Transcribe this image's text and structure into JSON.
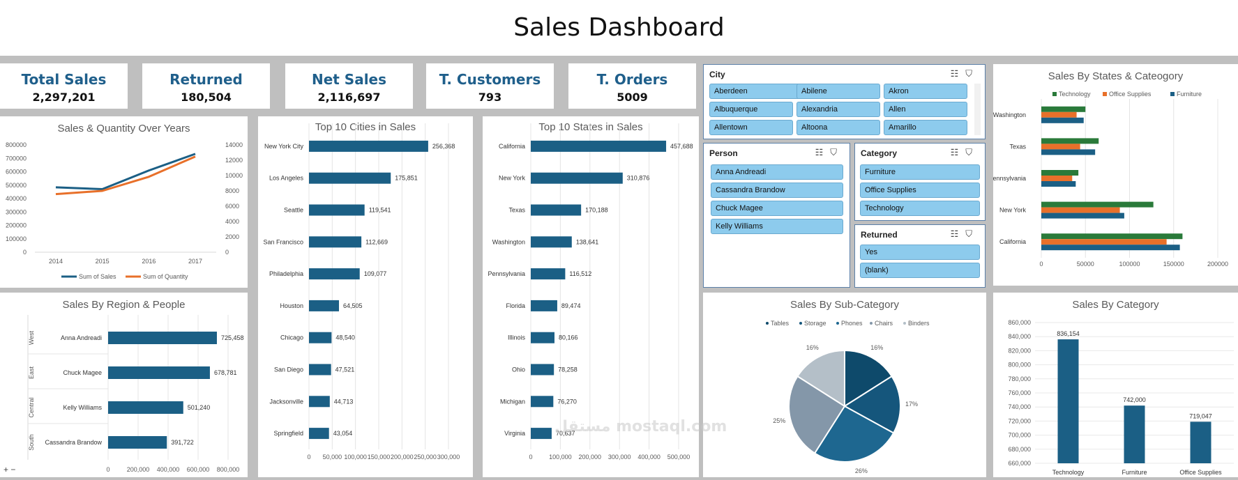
{
  "title": "Sales Dashboard",
  "kpis": [
    {
      "label": "Total Sales",
      "value": "2,297,201"
    },
    {
      "label": "Returned",
      "value": "180,504"
    },
    {
      "label": "Net Sales",
      "value": "2,116,697"
    },
    {
      "label": "T. Customers",
      "value": "793"
    },
    {
      "label": "T. Orders",
      "value": "5009"
    }
  ],
  "slicers": {
    "city": {
      "title": "City",
      "items": [
        "Aberdeen",
        "Abilene",
        "Akron",
        "Albuquerque",
        "Alexandria",
        "Allen",
        "Allentown",
        "Altoona",
        "Amarillo"
      ]
    },
    "person": {
      "title": "Person",
      "items": [
        "Anna Andreadi",
        "Cassandra Brandow",
        "Chuck Magee",
        "Kelly Williams"
      ]
    },
    "category": {
      "title": "Category",
      "items": [
        "Furniture",
        "Office Supplies",
        "Technology"
      ]
    },
    "returned": {
      "title": "Returned",
      "items": [
        "Yes",
        "(blank)"
      ]
    }
  },
  "icons": {
    "multi_select": "multi-select-icon",
    "clear_filter": "clear-filter-icon"
  },
  "colors": {
    "dark_blue": "#1b5f85",
    "navy": "#0e4a6b",
    "orange": "#e8702a",
    "green": "#2a7a3a",
    "title_blue": "#1f5f8b"
  },
  "watermark": "مستقل mostaql.com",
  "zoom_controls": "+ −",
  "chart_data": [
    {
      "id": "years",
      "type": "line",
      "title": "Sales & Quantity Over Years",
      "x": [
        "2014",
        "2015",
        "2016",
        "2017"
      ],
      "series": [
        {
          "name": "Sum of Sales",
          "values": [
            484000,
            470000,
            609000,
            733000
          ],
          "axis": "left",
          "color": "#1b5f85"
        },
        {
          "name": "Sum of Quantity",
          "values": [
            7580,
            8000,
            9840,
            12480
          ],
          "axis": "right",
          "color": "#e8702a"
        }
      ],
      "ylim": [
        0,
        800000
      ],
      "y_ticks": [
        "800000",
        "700000",
        "600000",
        "500000",
        "400000",
        "300000",
        "200000",
        "100000",
        "0"
      ],
      "y2lim": [
        0,
        14000
      ],
      "y2_ticks": [
        "14000",
        "12000",
        "10000",
        "8000",
        "6000",
        "4000",
        "2000",
        "0"
      ],
      "legend": "bottom"
    },
    {
      "id": "cities",
      "type": "bar",
      "orientation": "horizontal",
      "title": "Top 10 Cities in Sales",
      "categories": [
        "New York City",
        "Los Angeles",
        "Seattle",
        "San Francisco",
        "Philadelphia",
        "Houston",
        "Chicago",
        "San Diego",
        "Jacksonville",
        "Springfield"
      ],
      "values": [
        256368,
        175851,
        119541,
        112669,
        109077,
        64505,
        48540,
        47521,
        44713,
        43054
      ],
      "labels": [
        "256,368",
        "175,851",
        "119,541",
        "112,669",
        "109,077",
        "64,505",
        "48,540",
        "47,521",
        "44,713",
        "43,054"
      ],
      "xlim": [
        0,
        300000
      ],
      "x_ticks": [
        "0",
        "50,000",
        "100,000",
        "150,000",
        "200,000",
        "250,000",
        "300,000"
      ]
    },
    {
      "id": "states",
      "type": "bar",
      "orientation": "horizontal",
      "title": "Top 10 States in Sales",
      "categories": [
        "California",
        "New York",
        "Texas",
        "Washington",
        "Pennsylvania",
        "Florida",
        "Illinois",
        "Ohio",
        "Michigan",
        "Virginia"
      ],
      "values": [
        457688,
        310876,
        170188,
        138641,
        116512,
        89474,
        80166,
        78258,
        76270,
        70637
      ],
      "labels": [
        "457,688",
        "310,876",
        "170,188",
        "138,641",
        "116,512",
        "89,474",
        "80,166",
        "78,258",
        "76,270",
        "70,637"
      ],
      "xlim": [
        0,
        500000
      ],
      "x_ticks": [
        "0",
        "100,000",
        "200,000",
        "300,000",
        "400,000",
        "500,000"
      ]
    },
    {
      "id": "region",
      "type": "bar",
      "orientation": "horizontal",
      "title": "Sales By Region & People",
      "groups": [
        "West",
        "East",
        "Central",
        "South"
      ],
      "categories": [
        "Anna Andreadi",
        "Chuck Magee",
        "Kelly Williams",
        "Cassandra Brandow"
      ],
      "values": [
        725458,
        678781,
        501240,
        391722
      ],
      "labels": [
        "725,458",
        "678,781",
        "501,240",
        "391,722"
      ],
      "xlim": [
        0,
        800000
      ],
      "x_ticks": [
        "0",
        "200,000",
        "400,000",
        "600,000",
        "800,000"
      ]
    },
    {
      "id": "subcat",
      "type": "pie",
      "title": "Sales By Sub-Category",
      "categories": [
        "Tables",
        "Storage",
        "Phones",
        "Chairs",
        "Binders"
      ],
      "values": [
        16,
        17,
        26,
        25,
        16
      ],
      "labels": [
        "16%",
        "17%",
        "26%",
        "25%",
        "16%"
      ],
      "colors": [
        "#0e4a6b",
        "#15567c",
        "#1e6790",
        "#8497a9",
        "#b4bfc8"
      ],
      "legend": "top"
    },
    {
      "id": "statescat",
      "type": "bar",
      "orientation": "horizontal",
      "title": "Sales By States & Cateogory",
      "categories": [
        "Washington",
        "Texas",
        "Pennsylvania",
        "New York",
        "California"
      ],
      "series": [
        {
          "name": "Technology",
          "values": [
            50000,
            65000,
            42000,
            127000,
            160000
          ],
          "color": "#2a7a3a"
        },
        {
          "name": "Office Supplies",
          "values": [
            40000,
            44000,
            35000,
            89000,
            142000
          ],
          "color": "#e8702a"
        },
        {
          "name": "Furniture",
          "values": [
            48000,
            61000,
            39000,
            94000,
            157000
          ],
          "color": "#1b5f85"
        }
      ],
      "xlim": [
        0,
        200000
      ],
      "x_ticks": [
        "0",
        "50000",
        "100000",
        "150000",
        "200000"
      ],
      "legend": "top"
    },
    {
      "id": "category",
      "type": "bar",
      "orientation": "vertical",
      "title": "Sales By Category",
      "categories": [
        "Technology",
        "Furniture",
        "Office Supplies"
      ],
      "values": [
        836154,
        742000,
        719047
      ],
      "labels": [
        "836,154",
        "742,000",
        "719,047"
      ],
      "ylim": [
        660000,
        860000
      ],
      "y_ticks": [
        "860,000",
        "840,000",
        "820,000",
        "800,000",
        "780,000",
        "760,000",
        "740,000",
        "720,000",
        "700,000",
        "680,000",
        "660,000"
      ]
    }
  ]
}
